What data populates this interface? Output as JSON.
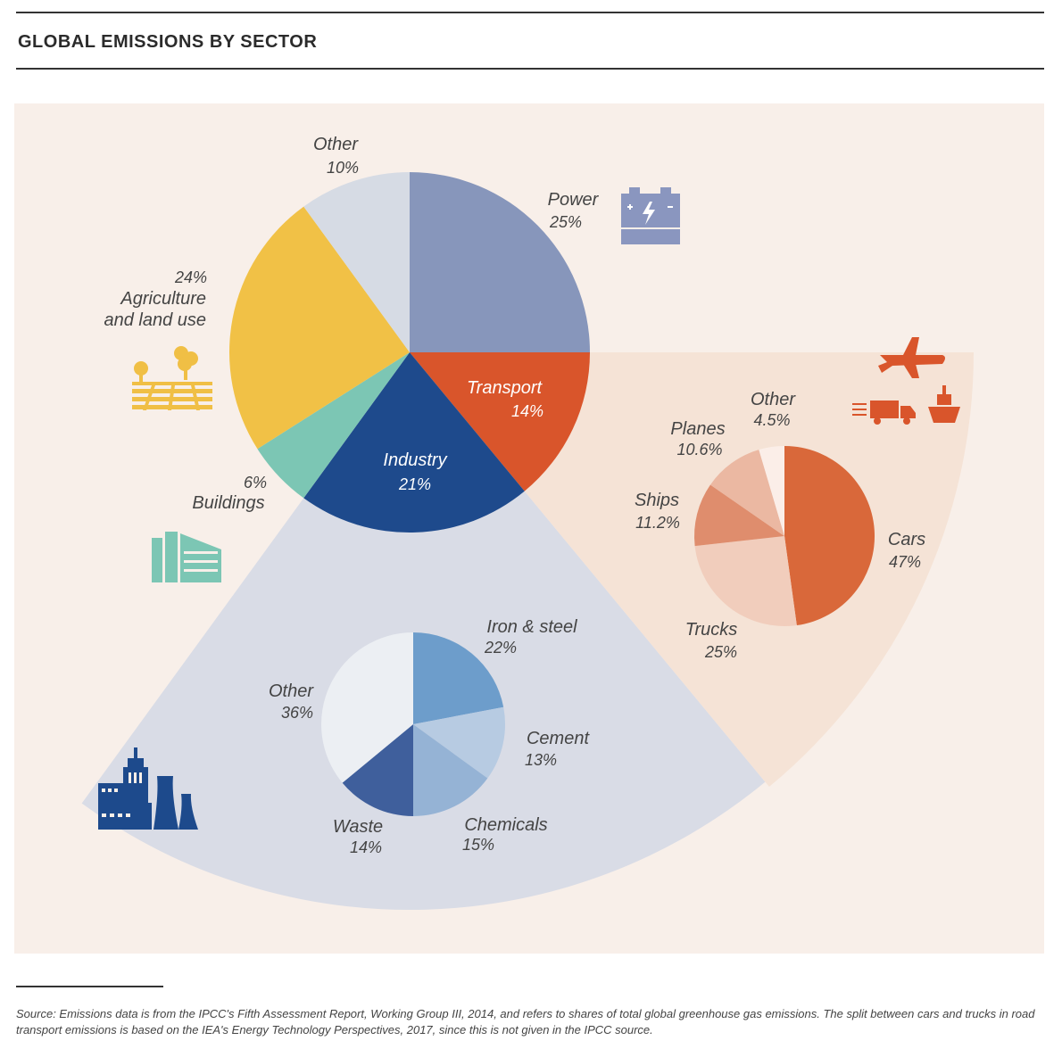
{
  "title": "GLOBAL EMISSIONS BY SECTOR",
  "source": "Source: Emissions data is from the IPCC's Fifth Assessment Report, Working Group III, 2014, and refers to shares of total global greenhouse gas emissions. The split between cars and trucks in road transport emissions is based on the IEA's Energy Technology Perspectives, 2017, since this is not given in the IPCC source.",
  "colors": {
    "panel": "#f8efe9",
    "industry_fan": "#d9dce6",
    "transport_fan": "#f5e3d6",
    "icon_blue": "#8a96bf",
    "icon_yellow": "#f0bf45",
    "icon_teal": "#7cc6b4",
    "icon_navy": "#1d4a8c",
    "icon_orange": "#d9552b"
  },
  "icons": [
    "battery-icon",
    "farm-icon",
    "building-icon",
    "factory-icon",
    "airplane-icon",
    "truck-icon",
    "ship-icon"
  ],
  "chart_data": [
    {
      "type": "pie",
      "slices": [
        {
          "key": "power",
          "name": "Power",
          "pct_label": "25%",
          "value": 25,
          "color": "#8796bb"
        },
        {
          "key": "transport",
          "name": "Transport",
          "pct_label": "14%",
          "value": 14,
          "color": "#d9552b"
        },
        {
          "key": "industry",
          "name": "Industry",
          "pct_label": "21%",
          "value": 21,
          "color": "#1e4a8c"
        },
        {
          "key": "buildings",
          "name": "Buildings",
          "pct_label": "6%",
          "value": 6,
          "color": "#7cc6b4"
        },
        {
          "key": "agriculture",
          "name": "Agriculture and land use",
          "pct_label": "24%",
          "value": 24,
          "color": "#f1c146"
        },
        {
          "key": "other",
          "name": "Other",
          "pct_label": "10%",
          "value": 10,
          "color": "#d6dbe4"
        }
      ]
    },
    {
      "type": "pie",
      "parent": "Industry",
      "slices": [
        {
          "key": "iron",
          "name": "Iron & steel",
          "pct_label": "22%",
          "value": 22,
          "color": "#6d9dcb"
        },
        {
          "key": "cement",
          "name": "Cement",
          "pct_label": "13%",
          "value": 13,
          "color": "#b7cbe2"
        },
        {
          "key": "chemicals",
          "name": "Chemicals",
          "pct_label": "15%",
          "value": 15,
          "color": "#95b3d5"
        },
        {
          "key": "waste",
          "name": "Waste",
          "pct_label": "14%",
          "value": 14,
          "color": "#3f5f9c"
        },
        {
          "key": "other",
          "name": "Other",
          "pct_label": "36%",
          "value": 36,
          "color": "#eceff3"
        }
      ]
    },
    {
      "type": "pie",
      "parent": "Transport",
      "slices": [
        {
          "key": "cars",
          "name": "Cars",
          "pct_label": "47%",
          "value": 47,
          "color": "#d9683a"
        },
        {
          "key": "trucks",
          "name": "Trucks",
          "pct_label": "25%",
          "value": 25,
          "color": "#f1cdbc"
        },
        {
          "key": "ships",
          "name": "Ships",
          "pct_label": "11.2%",
          "value": 11.2,
          "color": "#df8d6d"
        },
        {
          "key": "planes",
          "name": "Planes",
          "pct_label": "10.6%",
          "value": 10.6,
          "color": "#ebb8a2"
        },
        {
          "key": "other",
          "name": "Other",
          "pct_label": "4.5%",
          "value": 4.5,
          "color": "#fbeee8"
        }
      ]
    }
  ]
}
